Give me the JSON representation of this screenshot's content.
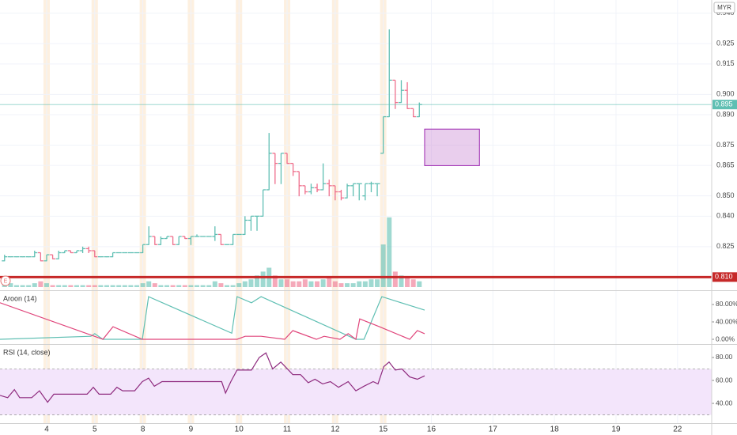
{
  "chart_data": [
    {
      "type": "ohlc",
      "currency": "MYR",
      "event": "E",
      "up_color": "#5fbfb3",
      "down_color": "#ef6f8c",
      "x": [
        0.125,
        0.25,
        0.375,
        0.5,
        0.625,
        0.75,
        0.875,
        1.0,
        1.125,
        1.25,
        1.375,
        1.5,
        1.625,
        1.75,
        1.875,
        2.0,
        2.125,
        2.25,
        2.375,
        2.5,
        2.625,
        2.75,
        2.875,
        3.0,
        3.125,
        3.25,
        3.375,
        3.5,
        3.625,
        3.75,
        3.875,
        4.0,
        4.125,
        4.25,
        4.375,
        4.5,
        4.625,
        4.75,
        4.875,
        5.0,
        5.125,
        5.25,
        5.375,
        5.5,
        5.625,
        5.75,
        5.875,
        6.0,
        6.125,
        6.25,
        6.375,
        6.5,
        6.625,
        6.75,
        6.875,
        7.0,
        7.125,
        7.25,
        7.375,
        7.5,
        7.625,
        7.75,
        7.875,
        8.0,
        8.125,
        8.25,
        8.375,
        8.5,
        8.625,
        8.75
      ],
      "open": [
        0.818,
        0.82,
        0.82,
        0.82,
        0.82,
        0.82,
        0.822,
        0.818,
        0.821,
        0.819,
        0.822,
        0.823,
        0.822,
        0.823,
        0.824,
        0.823,
        0.82,
        0.82,
        0.82,
        0.822,
        0.822,
        0.822,
        0.822,
        0.822,
        0.826,
        0.83,
        0.826,
        0.829,
        0.83,
        0.826,
        0.83,
        0.829,
        0.83,
        0.83,
        0.83,
        0.83,
        0.831,
        0.826,
        0.826,
        0.831,
        0.831,
        0.838,
        0.84,
        0.84,
        0.853,
        0.871,
        0.866,
        0.871,
        0.866,
        0.862,
        0.855,
        0.852,
        0.854,
        0.853,
        0.856,
        0.855,
        0.852,
        0.849,
        0.855,
        0.856,
        0.85,
        0.856,
        0.856,
        0.871,
        0.889,
        0.907,
        0.896,
        0.902,
        0.893,
        0.889
      ],
      "high": [
        0.821,
        0.82,
        0.82,
        0.82,
        0.82,
        0.823,
        0.822,
        0.821,
        0.821,
        0.823,
        0.823,
        0.823,
        0.823,
        0.825,
        0.825,
        0.823,
        0.82,
        0.82,
        0.822,
        0.822,
        0.822,
        0.822,
        0.822,
        0.826,
        0.835,
        0.83,
        0.83,
        0.83,
        0.83,
        0.83,
        0.83,
        0.83,
        0.831,
        0.83,
        0.83,
        0.835,
        0.831,
        0.826,
        0.831,
        0.831,
        0.84,
        0.84,
        0.84,
        0.853,
        0.881,
        0.871,
        0.871,
        0.871,
        0.866,
        0.862,
        0.855,
        0.856,
        0.856,
        0.866,
        0.858,
        0.855,
        0.853,
        0.856,
        0.856,
        0.856,
        0.856,
        0.857,
        0.856,
        0.889,
        0.932,
        0.907,
        0.907,
        0.906,
        0.893,
        0.896
      ],
      "low": [
        0.818,
        0.82,
        0.82,
        0.82,
        0.82,
        0.82,
        0.818,
        0.818,
        0.819,
        0.819,
        0.822,
        0.822,
        0.822,
        0.822,
        0.822,
        0.82,
        0.82,
        0.82,
        0.82,
        0.822,
        0.822,
        0.822,
        0.822,
        0.822,
        0.826,
        0.826,
        0.826,
        0.829,
        0.826,
        0.826,
        0.829,
        0.826,
        0.83,
        0.83,
        0.83,
        0.828,
        0.826,
        0.826,
        0.826,
        0.831,
        0.831,
        0.833,
        0.833,
        0.84,
        0.853,
        0.856,
        0.856,
        0.866,
        0.86,
        0.85,
        0.851,
        0.851,
        0.852,
        0.853,
        0.85,
        0.848,
        0.848,
        0.849,
        0.85,
        0.848,
        0.848,
        0.852,
        0.85,
        0.871,
        0.889,
        0.893,
        0.896,
        0.893,
        0.889,
        0.889
      ],
      "close": [
        0.82,
        0.82,
        0.82,
        0.82,
        0.82,
        0.822,
        0.818,
        0.821,
        0.819,
        0.822,
        0.823,
        0.822,
        0.823,
        0.824,
        0.823,
        0.82,
        0.82,
        0.82,
        0.822,
        0.822,
        0.822,
        0.822,
        0.822,
        0.826,
        0.83,
        0.826,
        0.829,
        0.83,
        0.826,
        0.83,
        0.829,
        0.83,
        0.83,
        0.83,
        0.83,
        0.831,
        0.826,
        0.826,
        0.831,
        0.831,
        0.838,
        0.84,
        0.84,
        0.853,
        0.871,
        0.866,
        0.871,
        0.866,
        0.862,
        0.855,
        0.852,
        0.854,
        0.853,
        0.856,
        0.855,
        0.852,
        0.849,
        0.855,
        0.856,
        0.856,
        0.856,
        0.856,
        0.856,
        0.889,
        0.907,
        0.896,
        0.902,
        0.893,
        0.889,
        0.895
      ],
      "volume": [
        2,
        2,
        1,
        1,
        1,
        2,
        3,
        2,
        1,
        1,
        1,
        1,
        1,
        1,
        1,
        1,
        1,
        1,
        1,
        1,
        1,
        1,
        1,
        2,
        3,
        2,
        1,
        1,
        1,
        1,
        1,
        1,
        1,
        1,
        1,
        3,
        2,
        1,
        1,
        2,
        3,
        4,
        6,
        8,
        10,
        6,
        4,
        4,
        3,
        3,
        4,
        3,
        3,
        4,
        5,
        3,
        2,
        2,
        2,
        3,
        3,
        4,
        4,
        22,
        36,
        8,
        6,
        5,
        4,
        3
      ],
      "ylim": [
        0.8035,
        0.9465
      ],
      "yticks": [
        {
          "value": 0.825,
          "label": "0.825"
        },
        {
          "value": 0.84,
          "label": "0.840"
        },
        {
          "value": 0.85,
          "label": "0.850"
        },
        {
          "value": 0.865,
          "label": "0.865"
        },
        {
          "value": 0.875,
          "label": "0.875"
        },
        {
          "value": 0.89,
          "label": "0.890"
        },
        {
          "value": 0.9,
          "label": "0.900"
        },
        {
          "value": 0.915,
          "label": "0.915"
        },
        {
          "value": 0.925,
          "label": "0.925"
        },
        {
          "value": 0.94,
          "label": "0.940"
        }
      ],
      "xlim": [
        0.03,
        14.83
      ],
      "xticks": [
        {
          "value": 1,
          "label": "4"
        },
        {
          "value": 2,
          "label": "5"
        },
        {
          "value": 3,
          "label": "8"
        },
        {
          "value": 4,
          "label": "9"
        },
        {
          "value": 5,
          "label": "10"
        },
        {
          "value": 6,
          "label": "11"
        },
        {
          "value": 7,
          "label": "12"
        },
        {
          "value": 8,
          "label": "15"
        },
        {
          "value": 9,
          "label": "16"
        },
        {
          "value": 10.28,
          "label": "17"
        },
        {
          "value": 11.56,
          "label": "18"
        },
        {
          "value": 12.84,
          "label": "19"
        },
        {
          "value": 14.12,
          "label": "22"
        }
      ],
      "session_breaks": [
        1,
        2,
        3,
        4,
        5,
        6,
        7,
        8
      ],
      "grid": true,
      "last_price": {
        "value": 0.895,
        "label": "0.895",
        "color": "#5fbfb3"
      },
      "level": {
        "value": 0.81,
        "label": "0.810",
        "color": "#c62828"
      },
      "zone": {
        "x": [
          8.86,
          10.0
        ],
        "y": [
          0.8649,
          0.8829
        ],
        "color": "#ce93d8"
      }
    },
    {
      "type": "line",
      "title": "Aroon (14)",
      "ylim": [
        -10.9,
        110.9
      ],
      "yticks": [
        {
          "value": 0,
          "label": "0.00%"
        },
        {
          "value": 40,
          "label": "40.00%"
        },
        {
          "value": 80,
          "label": "80.00%"
        }
      ],
      "series": [
        {
          "color": "#5fbfb3",
          "x": [
            0.03,
            1.92,
            2.0,
            2.17,
            2.99,
            3.12,
            4.85,
            4.96,
            5.26,
            5.46,
            7.43,
            7.6,
            7.97,
            8.86
          ],
          "values": [
            0,
            7,
            13,
            0,
            0,
            98,
            14,
            98,
            84,
            98,
            0,
            0,
            98,
            67
          ]
        },
        {
          "color": "#e0457b",
          "x": [
            0.03,
            2.17,
            2.38,
            2.99,
            4.96,
            5.13,
            5.46,
            5.95,
            6.12,
            6.61,
            6.77,
            7.1,
            7.27,
            7.43,
            7.51,
            7.92,
            8.55,
            8.71,
            8.86
          ],
          "values": [
            84,
            0,
            29,
            0,
            0,
            7,
            7,
            0,
            20,
            0,
            7,
            0,
            13,
            0,
            47,
            29,
            0,
            20,
            13
          ]
        }
      ]
    },
    {
      "type": "line",
      "title": "RSI (14, close)",
      "ylim": [
        22.8,
        91.0
      ],
      "yticks": [
        {
          "value": 40,
          "label": "40.00"
        },
        {
          "value": 60,
          "label": "60.00"
        },
        {
          "value": 80,
          "label": "80.00"
        }
      ],
      "band": [
        30,
        70
      ],
      "band_color": "#f3e5fb",
      "series": [
        {
          "color": "#8e2a7e",
          "x": [
            0.03,
            0.19,
            0.33,
            0.44,
            0.69,
            0.85,
            1.02,
            1.15,
            1.84,
            1.97,
            2.09,
            2.33,
            2.46,
            2.58,
            2.83,
            2.99,
            3.12,
            3.24,
            3.4,
            4.64,
            4.72,
            4.83,
            4.96,
            5.26,
            5.42,
            5.56,
            5.7,
            5.87,
            6.03,
            6.12,
            6.28,
            6.44,
            6.58,
            6.74,
            6.9,
            7.07,
            7.27,
            7.43,
            7.6,
            7.79,
            7.89,
            8.01,
            8.12,
            8.25,
            8.39,
            8.55,
            8.71,
            8.86
          ],
          "values": [
            47,
            45,
            52,
            45,
            45,
            51,
            41,
            48,
            48,
            54,
            48,
            48,
            54,
            51,
            51,
            59,
            62,
            55,
            59,
            59,
            49,
            59,
            69,
            69,
            80,
            84,
            70,
            76,
            69,
            65,
            65,
            58,
            61,
            57,
            59,
            54,
            59,
            51,
            55,
            59,
            57,
            72,
            76,
            69,
            70,
            63,
            61,
            64
          ]
        }
      ]
    }
  ]
}
